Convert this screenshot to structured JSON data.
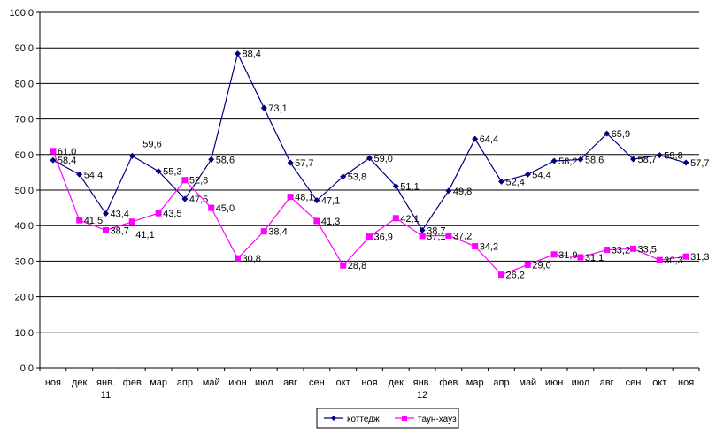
{
  "chart_data": {
    "type": "line",
    "categories": [
      "ноя",
      "дек",
      "янв.\n11",
      "фев",
      "мар",
      "апр",
      "май",
      "июн",
      "июл",
      "авг",
      "сен",
      "окт",
      "ноя",
      "дек",
      "янв.\n12",
      "фев",
      "мар",
      "апр",
      "май",
      "июн",
      "июл",
      "авг",
      "сен",
      "окт",
      "ноя"
    ],
    "series": [
      {
        "name": "коттедж",
        "color": "#000080",
        "marker": "diamond",
        "values": [
          58.4,
          54.4,
          43.4,
          59.6,
          55.3,
          47.5,
          58.6,
          88.4,
          73.1,
          57.7,
          47.1,
          53.8,
          59.0,
          51.1,
          38.7,
          49.8,
          64.4,
          52.4,
          54.4,
          58.2,
          58.6,
          65.9,
          58.7,
          59.8,
          57.7
        ]
      },
      {
        "name": "таун-хауз",
        "color": "#FF00FF",
        "marker": "square",
        "values": [
          61.0,
          41.5,
          38.7,
          41.1,
          43.5,
          52.8,
          45.0,
          30.8,
          38.4,
          48.1,
          41.3,
          28.8,
          36.9,
          42.1,
          37.1,
          37.2,
          34.2,
          26.2,
          29.0,
          31.9,
          31.1,
          33.2,
          33.5,
          30.3,
          31.3
        ]
      }
    ],
    "ylim": [
      0,
      100
    ],
    "yticks": [
      "0,0",
      "10,0",
      "20,0",
      "30,0",
      "40,0",
      "50,0",
      "60,0",
      "70,0",
      "80,0",
      "90,0",
      "100,0"
    ],
    "grid": true,
    "legend": "bottom",
    "title": "",
    "xlabel": "",
    "ylabel": ""
  }
}
